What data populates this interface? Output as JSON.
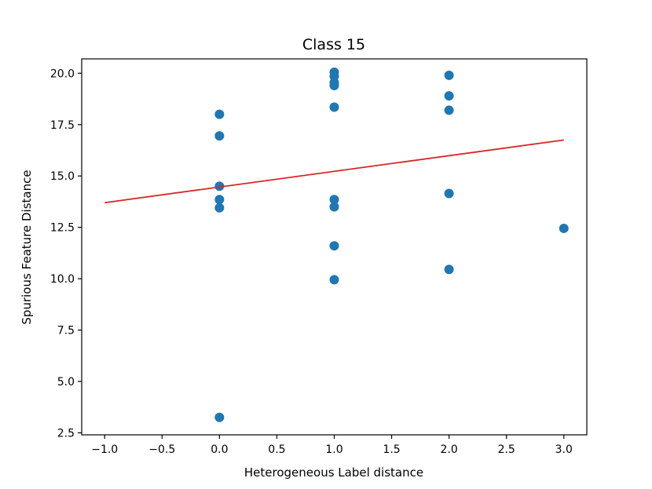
{
  "chart_data": {
    "type": "scatter",
    "title": "Class 15",
    "xlabel": "Heterogeneous Label distance",
    "ylabel": "Spurious Feature Distance",
    "xlim": [
      -1.2,
      3.2
    ],
    "ylim": [
      2.4,
      20.7
    ],
    "grid": false,
    "x_ticks": [
      -1.0,
      -0.5,
      0.0,
      0.5,
      1.0,
      1.5,
      2.0,
      2.5,
      3.0
    ],
    "x_tick_labels": [
      "−1.0",
      "−0.5",
      "0.0",
      "0.5",
      "1.0",
      "1.5",
      "2.0",
      "2.5",
      "3.0"
    ],
    "y_ticks": [
      2.5,
      5.0,
      7.5,
      10.0,
      12.5,
      15.0,
      17.5,
      20.0
    ],
    "y_tick_labels": [
      "2.5",
      "5.0",
      "7.5",
      "10.0",
      "12.5",
      "15.0",
      "17.5",
      "20.0"
    ],
    "series": [
      {
        "type": "scatter",
        "color": "#1f77b4",
        "x": [
          0,
          0,
          0,
          0,
          0,
          0,
          1,
          1,
          1,
          1,
          1,
          1,
          1,
          1,
          1,
          2,
          2,
          2,
          2,
          2,
          3
        ],
        "y": [
          18.0,
          16.95,
          14.5,
          13.85,
          13.45,
          3.25,
          20.05,
          19.85,
          19.55,
          19.4,
          18.35,
          13.85,
          13.5,
          11.6,
          9.95,
          19.9,
          18.9,
          18.2,
          14.15,
          10.45,
          12.45
        ]
      },
      {
        "type": "line",
        "color": "#d62728",
        "x": [
          -1.0,
          3.0
        ],
        "y": [
          13.7,
          16.75
        ]
      }
    ]
  }
}
